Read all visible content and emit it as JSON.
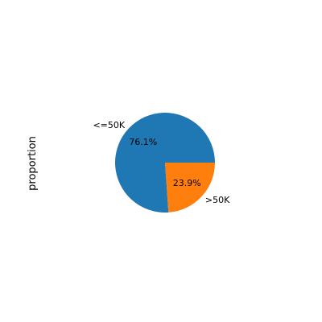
{
  "chart_data": {
    "type": "pie",
    "title": "",
    "xlabel": "",
    "ylabel": "proportion",
    "categories": [
      "<=50K",
      ">50K"
    ],
    "values": [
      0.761,
      0.239
    ],
    "value_labels": [
      "76.1%",
      "23.9%"
    ],
    "colors": [
      "#1f77b4",
      "#ff7f0e"
    ],
    "start_angle_degrees": 0,
    "direction": "counterclockwise",
    "legend": "none"
  }
}
